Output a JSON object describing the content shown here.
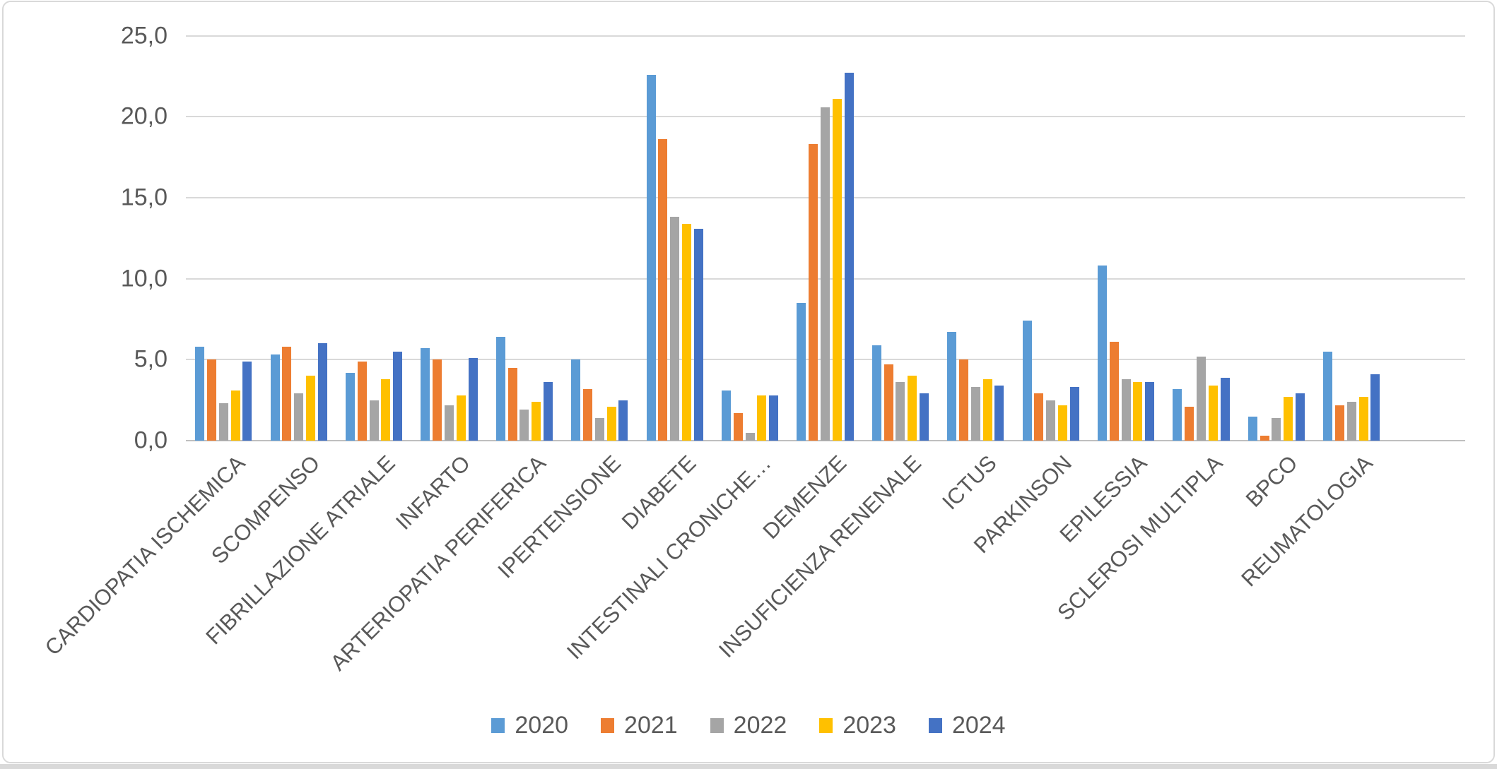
{
  "chart_data": {
    "type": "bar",
    "title": "",
    "xlabel": "",
    "ylabel": "",
    "ylim": [
      0,
      25
    ],
    "grid": "horizontal",
    "legend_position": "bottom",
    "decimal_separator": ",",
    "y_ticks": [
      0,
      5,
      10,
      15,
      20,
      25
    ],
    "y_tick_labels": [
      "0,0",
      "5,0",
      "10,0",
      "15,0",
      "20,0",
      "25,0"
    ],
    "categories": [
      "CARDIOPATIA ISCHEMICA",
      "SCOMPENSO",
      "FIBRILLAZIONE ATRIALE",
      "INFARTO",
      "ARTERIOPATIA PERIFERICA",
      "IPERTENSIONE",
      "DIABETE",
      "INTESTINALI CRONICHE…",
      "DEMENZE",
      "INSUFICIENZA RENENALE",
      "ICTUS",
      "PARKINSON",
      "EPILESSIA",
      "SCLEROSI MULTIPLA",
      "BPCO",
      "REUMATOLOGIA"
    ],
    "series": [
      {
        "name": "2020",
        "color": "#5B9BD5",
        "values": [
          5.8,
          5.3,
          4.2,
          5.7,
          6.4,
          5.0,
          22.6,
          3.1,
          8.5,
          5.9,
          6.7,
          7.4,
          10.8,
          3.2,
          1.5,
          5.5
        ]
      },
      {
        "name": "2021",
        "color": "#ED7D31",
        "values": [
          5.0,
          5.8,
          4.9,
          5.0,
          4.5,
          3.2,
          18.6,
          1.7,
          18.3,
          4.7,
          5.0,
          2.9,
          6.1,
          2.1,
          0.3,
          2.2
        ]
      },
      {
        "name": "2022",
        "color": "#A5A5A5",
        "values": [
          2.3,
          2.9,
          2.5,
          2.2,
          1.9,
          1.4,
          13.8,
          0.5,
          20.6,
          3.6,
          3.3,
          2.5,
          3.8,
          5.2,
          1.4,
          2.4
        ]
      },
      {
        "name": "2023",
        "color": "#FFC000",
        "values": [
          3.1,
          4.0,
          3.8,
          2.8,
          2.4,
          2.1,
          13.4,
          2.8,
          21.1,
          4.0,
          3.8,
          2.2,
          3.6,
          3.4,
          2.7,
          2.7
        ]
      },
      {
        "name": "2024",
        "color": "#4472C4",
        "values": [
          4.9,
          6.0,
          5.5,
          5.1,
          3.6,
          2.5,
          13.1,
          2.8,
          22.7,
          2.9,
          3.4,
          3.3,
          3.6,
          3.9,
          2.9,
          4.1
        ]
      }
    ],
    "colors": {
      "gridline": "#d9d9d9",
      "axis_line": "#bfbfbf",
      "tick_text": "#595959"
    }
  }
}
